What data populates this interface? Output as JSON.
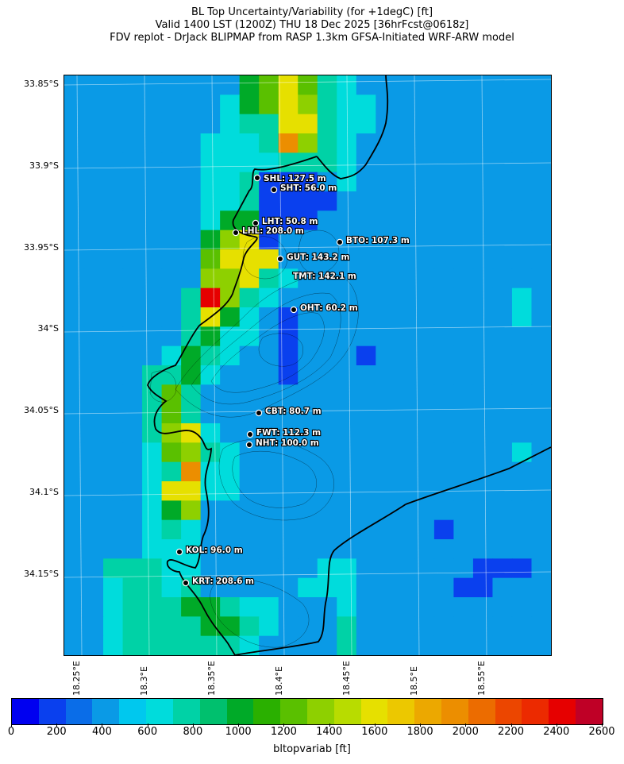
{
  "header": {
    "line1": "BL Top Uncertainty/Variability (for +1degC) [ft]",
    "line2": "Valid 1400 LST (1200Z) THU 18 Dec 2025 [36hrFcst@0618z]",
    "line3": "FDV replot - DrJack BLIPMAP from RASP 1.3km GFSA-Initiated WRF-ARW model"
  },
  "axes": {
    "lat_labels": [
      "33.85°S",
      "33.9°S",
      "33.95°S",
      "34°S",
      "34.05°S",
      "34.1°S",
      "34.15°S"
    ],
    "lon_labels": [
      "18.25°E",
      "18.3°E",
      "18.35°E",
      "18.4°E",
      "18.45°E",
      "18.5°E",
      "18.55°E"
    ]
  },
  "colorbar": {
    "label": "bltopvariab [ft]",
    "ticks": [
      "0",
      "200",
      "400",
      "600",
      "800",
      "1000",
      "1200",
      "1400",
      "1600",
      "1800",
      "2000",
      "2200",
      "2400",
      "2600"
    ],
    "colors": [
      "#0000f0",
      "#0a40ee",
      "#0a6de8",
      "#0a9ae6",
      "#00c8ee",
      "#00dcdc",
      "#00d2a6",
      "#00c06e",
      "#00aa28",
      "#2ab000",
      "#5ac000",
      "#8ed000",
      "#b8dc00",
      "#e6e000",
      "#ecc800",
      "#eca800",
      "#ec8e00",
      "#ec6c00",
      "#ec4600",
      "#ec2a00",
      "#e60000",
      "#bf0026"
    ]
  },
  "sites": [
    {
      "name": "SHL: 127.5 m",
      "icon": "site-marker"
    },
    {
      "name": "SHT: 56.0 m",
      "icon": "site-marker"
    },
    {
      "name": "LHT: 50.8 m",
      "icon": "site-marker"
    },
    {
      "name": "LHL: 208.0 m",
      "icon": "site-marker"
    },
    {
      "name": "BTO: 107.3 m",
      "icon": "site-marker"
    },
    {
      "name": "GUT: 143.2 m",
      "icon": "site-marker"
    },
    {
      "name": "TMT: 142.1 m",
      "icon": "site-marker"
    },
    {
      "name": "OHT: 60.2 m",
      "icon": "site-marker"
    },
    {
      "name": "CBT: 80.7 m",
      "icon": "site-marker"
    },
    {
      "name": "FWT: 112.3 m",
      "icon": "site-marker"
    },
    {
      "name": "NHT: 100.0 m",
      "icon": "site-marker"
    },
    {
      "name": "KOL: 96.0 m",
      "icon": "site-marker"
    },
    {
      "name": "KRT: 208.6 m",
      "icon": "site-marker"
    }
  ],
  "field": {
    "units": "ft",
    "cols": 25,
    "rows": 30,
    "rows_ft": [
      [
        400,
        400,
        400,
        400,
        400,
        400,
        400,
        400,
        400,
        1000,
        1200,
        1600,
        1200,
        800,
        600,
        400,
        400,
        400,
        400,
        400,
        400,
        400,
        400,
        400,
        400
      ],
      [
        400,
        400,
        400,
        400,
        400,
        400,
        400,
        400,
        600,
        1000,
        1200,
        1600,
        1400,
        800,
        600,
        600,
        400,
        400,
        400,
        400,
        400,
        400,
        400,
        400,
        400
      ],
      [
        400,
        400,
        400,
        400,
        400,
        400,
        400,
        400,
        600,
        800,
        800,
        1600,
        1600,
        800,
        600,
        600,
        400,
        400,
        400,
        400,
        400,
        400,
        400,
        400,
        400
      ],
      [
        400,
        400,
        400,
        400,
        400,
        400,
        400,
        600,
        600,
        600,
        800,
        2000,
        1400,
        800,
        600,
        400,
        400,
        400,
        400,
        400,
        400,
        400,
        400,
        400,
        400
      ],
      [
        400,
        400,
        400,
        400,
        400,
        400,
        400,
        600,
        600,
        600,
        600,
        800,
        800,
        800,
        600,
        400,
        400,
        400,
        400,
        400,
        400,
        400,
        400,
        400,
        400
      ],
      [
        400,
        400,
        400,
        400,
        400,
        400,
        400,
        600,
        600,
        800,
        200,
        200,
        200,
        400,
        600,
        400,
        400,
        400,
        400,
        400,
        400,
        400,
        400,
        400,
        400
      ],
      [
        400,
        400,
        400,
        400,
        400,
        400,
        400,
        600,
        600,
        800,
        200,
        200,
        200,
        200,
        400,
        400,
        400,
        400,
        400,
        400,
        400,
        400,
        400,
        400,
        400
      ],
      [
        400,
        400,
        400,
        400,
        400,
        400,
        400,
        600,
        1000,
        1000,
        200,
        200,
        200,
        400,
        400,
        400,
        400,
        400,
        400,
        400,
        400,
        400,
        400,
        400,
        400
      ],
      [
        400,
        400,
        400,
        400,
        400,
        400,
        400,
        1000,
        1400,
        1600,
        200,
        400,
        400,
        400,
        400,
        400,
        400,
        400,
        400,
        400,
        400,
        400,
        400,
        400,
        400
      ],
      [
        400,
        400,
        400,
        400,
        400,
        400,
        400,
        1200,
        1600,
        1600,
        1600,
        400,
        400,
        400,
        400,
        400,
        400,
        400,
        400,
        400,
        400,
        400,
        400,
        400,
        400
      ],
      [
        400,
        400,
        400,
        400,
        400,
        400,
        400,
        1400,
        1400,
        1600,
        800,
        600,
        400,
        400,
        400,
        400,
        400,
        400,
        400,
        400,
        400,
        400,
        400,
        400,
        400
      ],
      [
        400,
        400,
        400,
        400,
        400,
        400,
        800,
        2400,
        1400,
        800,
        600,
        400,
        400,
        400,
        400,
        400,
        400,
        400,
        400,
        400,
        400,
        400,
        400,
        600,
        400
      ],
      [
        400,
        400,
        400,
        400,
        400,
        400,
        800,
        1600,
        1000,
        600,
        400,
        200,
        400,
        400,
        400,
        400,
        400,
        400,
        400,
        400,
        400,
        400,
        400,
        600,
        400
      ],
      [
        400,
        400,
        400,
        400,
        400,
        400,
        800,
        1000,
        600,
        600,
        400,
        200,
        400,
        400,
        400,
        400,
        400,
        400,
        400,
        400,
        400,
        400,
        400,
        400,
        400
      ],
      [
        400,
        400,
        400,
        400,
        400,
        600,
        1000,
        800,
        600,
        400,
        400,
        200,
        400,
        400,
        400,
        200,
        400,
        400,
        400,
        400,
        400,
        400,
        400,
        400,
        400
      ],
      [
        400,
        400,
        400,
        400,
        800,
        800,
        1000,
        600,
        400,
        400,
        400,
        200,
        400,
        400,
        400,
        400,
        400,
        400,
        400,
        400,
        400,
        400,
        400,
        400,
        400
      ],
      [
        400,
        400,
        400,
        400,
        800,
        1200,
        800,
        400,
        400,
        400,
        400,
        400,
        400,
        400,
        400,
        400,
        400,
        400,
        400,
        400,
        400,
        400,
        400,
        400,
        400
      ],
      [
        400,
        400,
        400,
        400,
        800,
        1200,
        800,
        400,
        400,
        400,
        400,
        400,
        400,
        400,
        400,
        400,
        400,
        400,
        400,
        400,
        400,
        400,
        400,
        400,
        400
      ],
      [
        400,
        400,
        400,
        400,
        800,
        1400,
        1600,
        600,
        400,
        400,
        400,
        400,
        400,
        400,
        400,
        400,
        400,
        400,
        400,
        400,
        400,
        400,
        400,
        400,
        400
      ],
      [
        400,
        400,
        400,
        400,
        600,
        1200,
        1400,
        800,
        600,
        400,
        400,
        400,
        400,
        400,
        400,
        400,
        400,
        400,
        400,
        400,
        400,
        400,
        400,
        600,
        400
      ],
      [
        400,
        400,
        400,
        400,
        600,
        800,
        2000,
        600,
        600,
        400,
        400,
        400,
        400,
        400,
        400,
        400,
        400,
        400,
        400,
        400,
        400,
        400,
        400,
        400,
        400
      ],
      [
        400,
        400,
        400,
        400,
        600,
        1600,
        1600,
        600,
        600,
        400,
        400,
        400,
        400,
        400,
        400,
        400,
        400,
        400,
        400,
        400,
        400,
        400,
        400,
        400,
        400
      ],
      [
        400,
        400,
        400,
        400,
        600,
        1000,
        1400,
        400,
        400,
        400,
        400,
        400,
        400,
        400,
        400,
        400,
        400,
        400,
        400,
        400,
        400,
        400,
        400,
        400,
        400
      ],
      [
        400,
        400,
        400,
        400,
        600,
        800,
        600,
        400,
        400,
        400,
        400,
        400,
        400,
        400,
        400,
        400,
        400,
        400,
        400,
        200,
        400,
        400,
        400,
        400,
        400
      ],
      [
        400,
        400,
        400,
        400,
        600,
        600,
        600,
        400,
        400,
        400,
        400,
        400,
        400,
        400,
        400,
        400,
        400,
        400,
        400,
        400,
        400,
        400,
        400,
        400,
        400
      ],
      [
        400,
        400,
        800,
        800,
        800,
        600,
        600,
        400,
        400,
        400,
        400,
        400,
        400,
        600,
        600,
        400,
        400,
        400,
        400,
        400,
        400,
        200,
        200,
        200,
        400
      ],
      [
        400,
        400,
        600,
        800,
        800,
        600,
        800,
        400,
        400,
        400,
        400,
        400,
        600,
        600,
        600,
        400,
        400,
        400,
        400,
        400,
        200,
        200,
        400,
        400,
        400
      ],
      [
        400,
        400,
        600,
        800,
        800,
        800,
        1000,
        1000,
        800,
        600,
        600,
        400,
        400,
        400,
        600,
        400,
        400,
        400,
        400,
        400,
        400,
        400,
        400,
        400,
        400
      ],
      [
        400,
        400,
        600,
        800,
        800,
        800,
        800,
        1000,
        1000,
        800,
        600,
        400,
        400,
        400,
        800,
        400,
        400,
        400,
        400,
        400,
        400,
        400,
        400,
        400,
        400
      ],
      [
        400,
        400,
        600,
        800,
        800,
        800,
        800,
        800,
        800,
        600,
        400,
        400,
        400,
        400,
        800,
        400,
        400,
        400,
        400,
        400,
        400,
        400,
        400,
        400,
        400
      ]
    ]
  }
}
